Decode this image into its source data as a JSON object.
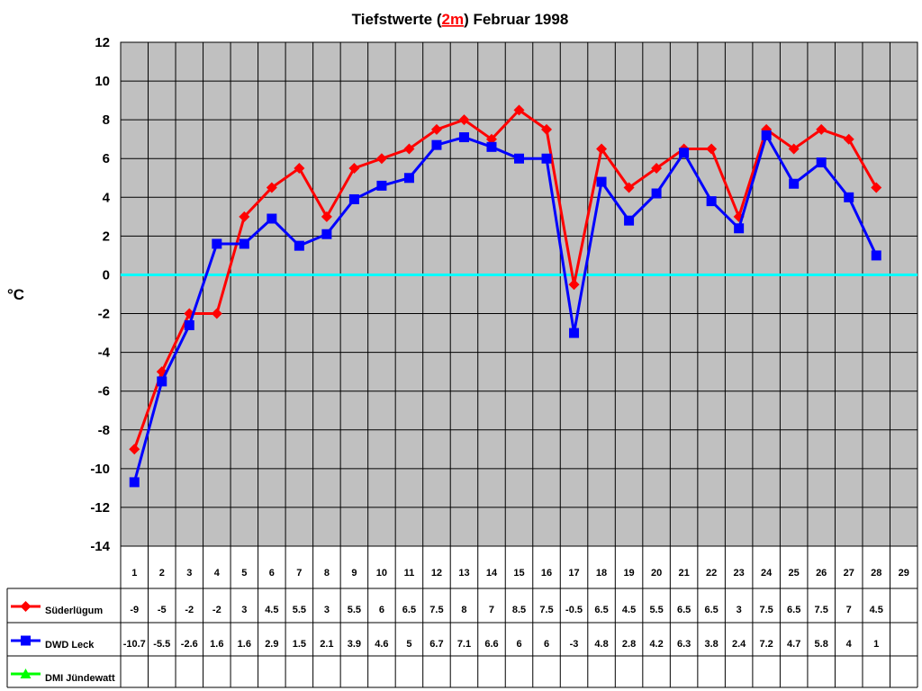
{
  "chart_data": {
    "type": "line",
    "title": {
      "pre": "Tiefstwerte (",
      "highlight": "2m",
      "post": ") Februar 1998"
    },
    "ylabel": "°C",
    "ylim": [
      -14,
      12
    ],
    "yticks": [
      12,
      10,
      8,
      6,
      4,
      2,
      0,
      -2,
      -4,
      -6,
      -8,
      -10,
      -12,
      -14
    ],
    "categories": [
      "1",
      "2",
      "3",
      "4",
      "5",
      "6",
      "7",
      "8",
      "9",
      "10",
      "11",
      "12",
      "13",
      "14",
      "15",
      "16",
      "17",
      "18",
      "19",
      "20",
      "21",
      "22",
      "23",
      "24",
      "25",
      "26",
      "27",
      "28",
      "29"
    ],
    "grid": true,
    "zero_line_color": "#00ffff",
    "plot_background": "#c0c0c0",
    "series": [
      {
        "name": "Süderlügum",
        "color": "#ff0000",
        "marker": "diamond",
        "values": [
          -9,
          -5,
          -2,
          -2,
          3,
          4.5,
          5.5,
          3,
          5.5,
          6,
          6.5,
          7.5,
          8,
          7,
          8.5,
          7.5,
          -0.5,
          6.5,
          4.5,
          5.5,
          6.5,
          6.5,
          3,
          7.5,
          6.5,
          7.5,
          7,
          4.5,
          null
        ]
      },
      {
        "name": "DWD Leck",
        "color": "#0000ff",
        "marker": "square",
        "values": [
          -10.7,
          -5.5,
          -2.6,
          1.6,
          1.6,
          2.9,
          1.5,
          2.1,
          3.9,
          4.6,
          5,
          6.7,
          7.1,
          6.6,
          6,
          6,
          -3,
          4.8,
          2.8,
          4.2,
          6.3,
          3.8,
          2.4,
          7.2,
          4.7,
          5.8,
          4,
          1,
          null
        ]
      },
      {
        "name": "DMI Jündewatt",
        "color": "#00ff00",
        "marker": "triangle",
        "values": [
          null,
          null,
          null,
          null,
          null,
          null,
          null,
          null,
          null,
          null,
          null,
          null,
          null,
          null,
          null,
          null,
          null,
          null,
          null,
          null,
          null,
          null,
          null,
          null,
          null,
          null,
          null,
          null,
          null
        ]
      }
    ]
  }
}
